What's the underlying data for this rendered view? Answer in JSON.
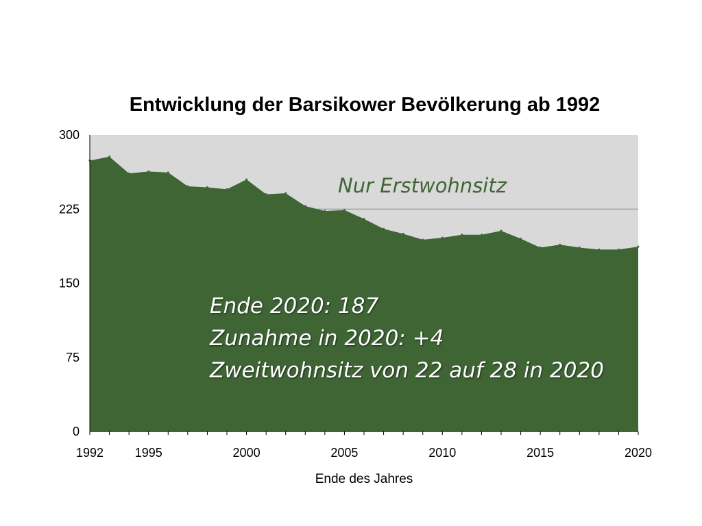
{
  "chart_data": {
    "type": "area",
    "title": "Entwicklung der Barsikower Bevölkerung ab 1992",
    "xlabel": "Ende des Jahres",
    "ylabel": "",
    "ylim": [
      0,
      300
    ],
    "xlim": [
      1992,
      2020
    ],
    "yticks": [
      "0",
      "75",
      "150",
      "225",
      "300"
    ],
    "xticks": [
      "1992",
      "1995",
      "2000",
      "2005",
      "2010",
      "2015",
      "2020"
    ],
    "grid": false,
    "reference_line": 225,
    "x": [
      1992,
      1993,
      1994,
      1995,
      1996,
      1997,
      1998,
      1999,
      2000,
      2001,
      2002,
      2003,
      2004,
      2005,
      2006,
      2007,
      2008,
      2009,
      2010,
      2011,
      2012,
      2013,
      2014,
      2015,
      2016,
      2017,
      2018,
      2019,
      2020
    ],
    "series": [
      {
        "name": "Nur Erstwohnsitz",
        "color": "#3f6535",
        "values": [
          274,
          278,
          261,
          263,
          262,
          248,
          247,
          245,
          255,
          240,
          241,
          228,
          223,
          224,
          215,
          205,
          200,
          194,
          196,
          199,
          199,
          203,
          195,
          186,
          189,
          186,
          184,
          184,
          187
        ]
      }
    ],
    "background_color": "#d9d9d9",
    "annotations": {
      "series_label": "Nur Erstwohnsitz",
      "lines": [
        "Ende 2020: 187",
        "Zunahme in 2020: +4",
        "Zweitwohnsitz von 22 auf 28 in 2020"
      ]
    }
  }
}
